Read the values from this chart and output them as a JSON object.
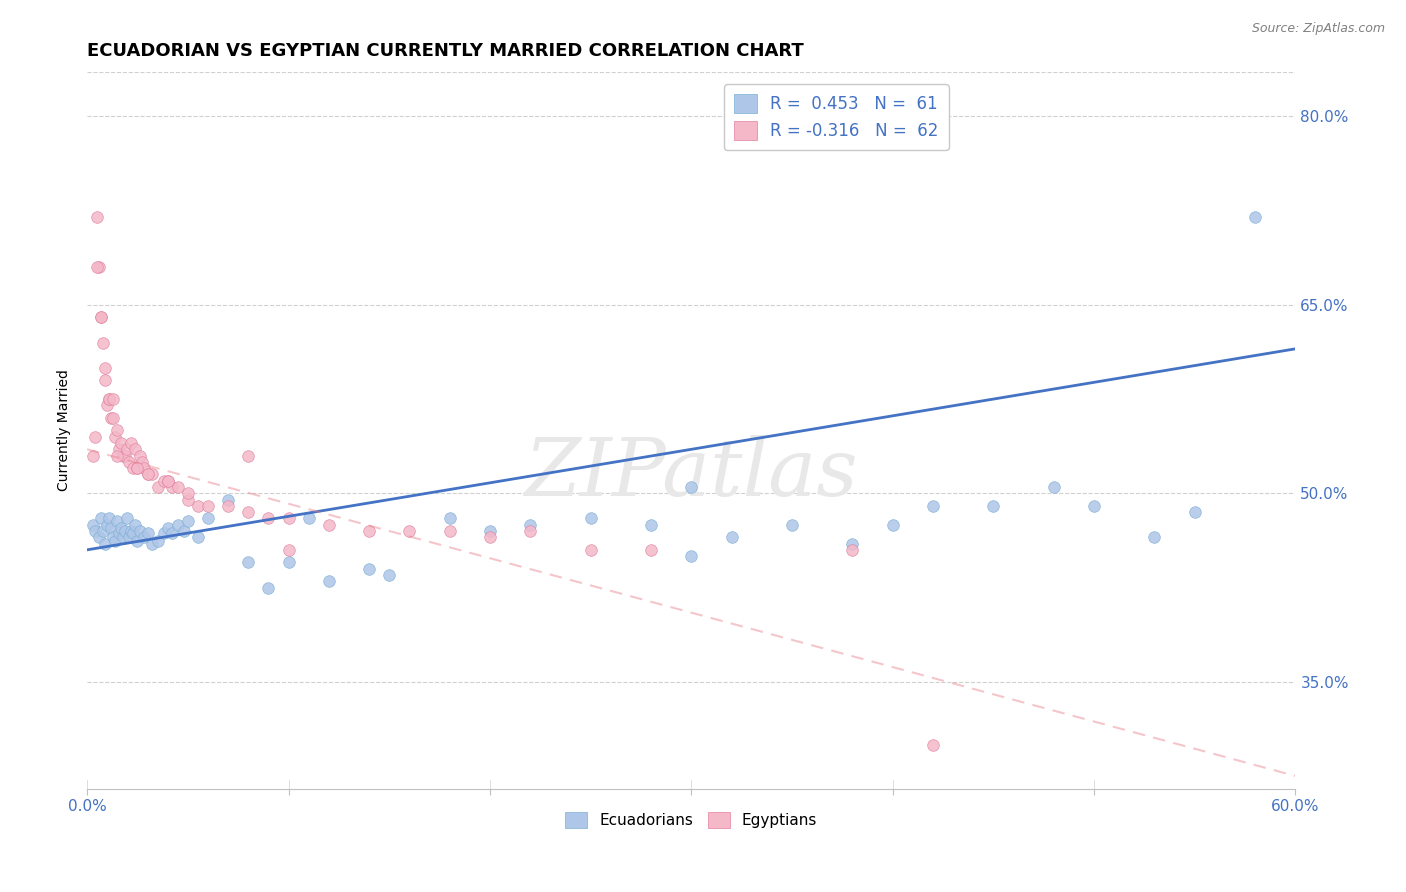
{
  "title": "ECUADORIAN VS EGYPTIAN CURRENTLY MARRIED CORRELATION CHART",
  "source": "Source: ZipAtlas.com",
  "xlabel": "",
  "ylabel": "Currently Married",
  "xlim": [
    0.0,
    0.6
  ],
  "ylim": [
    0.265,
    0.835
  ],
  "yticks": [
    0.35,
    0.5,
    0.65,
    0.8
  ],
  "ytick_labels": [
    "35.0%",
    "50.0%",
    "65.0%",
    "80.0%"
  ],
  "xticks": [
    0.0,
    0.1,
    0.2,
    0.3,
    0.4,
    0.5,
    0.6
  ],
  "xtick_labels": [
    "0.0%",
    "",
    "",
    "",
    "",
    "",
    "60.0%"
  ],
  "legend_r1": "R =  0.453   N =  61",
  "legend_r2": "R = -0.316   N =  62",
  "ecuadorian_color": "#aec6e8",
  "ecuadorian_edge": "#7bafd4",
  "egyptian_color": "#f4b8c8",
  "egyptian_edge": "#e080a0",
  "trendline_blue": "#4472c4",
  "trendline_pink": "#e8808a",
  "watermark": "ZIPatlas",
  "background_color": "#ffffff",
  "blue_line_x": [
    0.0,
    0.6
  ],
  "blue_line_y": [
    0.455,
    0.615
  ],
  "pink_line_x": [
    0.0,
    0.6
  ],
  "pink_line_y": [
    0.535,
    0.275
  ],
  "ecuadorians_x": [
    0.003,
    0.004,
    0.006,
    0.007,
    0.008,
    0.009,
    0.01,
    0.011,
    0.012,
    0.013,
    0.014,
    0.015,
    0.016,
    0.017,
    0.018,
    0.019,
    0.02,
    0.021,
    0.022,
    0.023,
    0.024,
    0.025,
    0.026,
    0.028,
    0.03,
    0.032,
    0.035,
    0.038,
    0.04,
    0.042,
    0.045,
    0.048,
    0.05,
    0.055,
    0.06,
    0.07,
    0.08,
    0.09,
    0.1,
    0.11,
    0.12,
    0.14,
    0.15,
    0.18,
    0.2,
    0.22,
    0.25,
    0.28,
    0.3,
    0.35,
    0.4,
    0.42,
    0.45,
    0.5,
    0.53,
    0.55,
    0.3,
    0.32,
    0.38,
    0.48,
    0.58
  ],
  "ecuadorians_y": [
    0.475,
    0.47,
    0.465,
    0.48,
    0.47,
    0.46,
    0.475,
    0.48,
    0.472,
    0.465,
    0.462,
    0.478,
    0.468,
    0.472,
    0.465,
    0.47,
    0.48,
    0.465,
    0.47,
    0.468,
    0.475,
    0.462,
    0.47,
    0.465,
    0.468,
    0.46,
    0.462,
    0.468,
    0.472,
    0.468,
    0.475,
    0.47,
    0.478,
    0.465,
    0.48,
    0.495,
    0.445,
    0.425,
    0.445,
    0.48,
    0.43,
    0.44,
    0.435,
    0.48,
    0.47,
    0.475,
    0.48,
    0.475,
    0.505,
    0.475,
    0.475,
    0.49,
    0.49,
    0.49,
    0.465,
    0.485,
    0.45,
    0.465,
    0.46,
    0.505,
    0.72
  ],
  "egyptians_x": [
    0.003,
    0.004,
    0.005,
    0.006,
    0.007,
    0.008,
    0.009,
    0.01,
    0.011,
    0.012,
    0.013,
    0.014,
    0.015,
    0.016,
    0.017,
    0.018,
    0.019,
    0.02,
    0.021,
    0.022,
    0.023,
    0.024,
    0.025,
    0.026,
    0.027,
    0.028,
    0.03,
    0.032,
    0.035,
    0.038,
    0.04,
    0.042,
    0.045,
    0.05,
    0.055,
    0.06,
    0.07,
    0.08,
    0.09,
    0.1,
    0.12,
    0.14,
    0.16,
    0.18,
    0.2,
    0.22,
    0.25,
    0.28,
    0.1,
    0.08,
    0.005,
    0.007,
    0.009,
    0.011,
    0.013,
    0.015,
    0.025,
    0.03,
    0.04,
    0.05,
    0.38,
    0.42
  ],
  "egyptians_y": [
    0.53,
    0.545,
    0.72,
    0.68,
    0.64,
    0.62,
    0.59,
    0.57,
    0.575,
    0.56,
    0.56,
    0.545,
    0.55,
    0.535,
    0.54,
    0.53,
    0.53,
    0.535,
    0.525,
    0.54,
    0.52,
    0.535,
    0.52,
    0.53,
    0.525,
    0.52,
    0.515,
    0.515,
    0.505,
    0.51,
    0.51,
    0.505,
    0.505,
    0.495,
    0.49,
    0.49,
    0.49,
    0.485,
    0.48,
    0.48,
    0.475,
    0.47,
    0.47,
    0.47,
    0.465,
    0.47,
    0.455,
    0.455,
    0.455,
    0.53,
    0.68,
    0.64,
    0.6,
    0.575,
    0.575,
    0.53,
    0.52,
    0.515,
    0.51,
    0.5,
    0.455,
    0.3
  ]
}
